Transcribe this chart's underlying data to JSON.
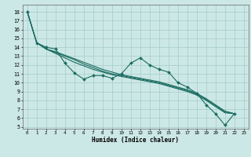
{
  "title": "",
  "xlabel": "Humidex (Indice chaleur)",
  "ylabel": "",
  "bg_color": "#cce8e6",
  "grid_color": "#aacfcd",
  "line_color": "#1a6b60",
  "series_zigzag": [
    18.0,
    14.5,
    14.0,
    13.8,
    12.2,
    11.1,
    10.4,
    10.8,
    10.8,
    10.5,
    11.0,
    12.2,
    12.8,
    12.0,
    11.5,
    11.2,
    10.0,
    9.5,
    8.8,
    7.5,
    6.5,
    5.2,
    6.5
  ],
  "series_diag1": [
    18.0,
    14.5,
    13.8,
    13.3,
    12.8,
    12.3,
    11.9,
    11.5,
    11.2,
    10.9,
    10.7,
    10.5,
    10.3,
    10.1,
    9.9,
    9.6,
    9.3,
    9.0,
    8.6,
    8.0,
    7.3,
    6.6,
    6.5
  ],
  "series_diag2": [
    18.0,
    14.5,
    13.8,
    13.4,
    13.0,
    12.6,
    12.1,
    11.7,
    11.3,
    11.0,
    10.8,
    10.6,
    10.4,
    10.2,
    10.0,
    9.7,
    9.4,
    9.1,
    8.7,
    8.1,
    7.4,
    6.7,
    6.5
  ],
  "series_diag3": [
    18.0,
    14.5,
    13.8,
    13.5,
    13.1,
    12.7,
    12.3,
    11.9,
    11.5,
    11.2,
    10.9,
    10.7,
    10.5,
    10.3,
    10.1,
    9.8,
    9.5,
    9.2,
    8.8,
    8.2,
    7.5,
    6.8,
    6.5
  ],
  "xlim": [
    -0.5,
    23.5
  ],
  "ylim": [
    4.8,
    18.8
  ],
  "xticks": [
    0,
    1,
    2,
    3,
    4,
    5,
    6,
    7,
    8,
    9,
    10,
    11,
    12,
    13,
    14,
    15,
    16,
    17,
    18,
    19,
    20,
    21,
    22,
    23
  ],
  "yticks": [
    5,
    6,
    7,
    8,
    9,
    10,
    11,
    12,
    13,
    14,
    15,
    16,
    17,
    18
  ]
}
